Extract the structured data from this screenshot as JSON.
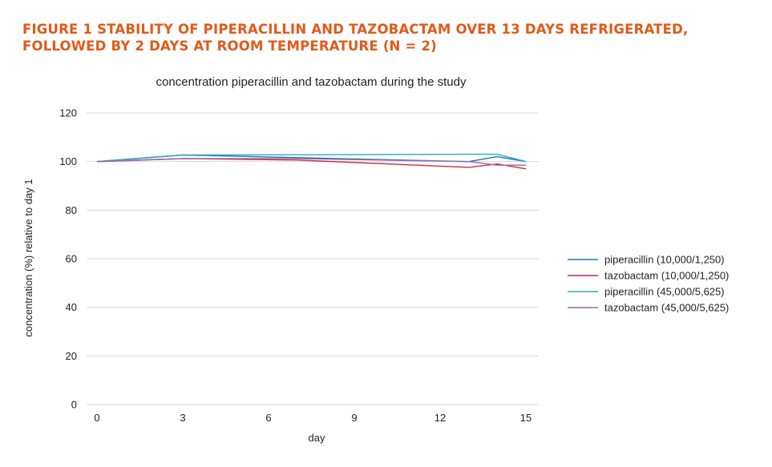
{
  "figure_title": "FIGURE 1 STABILITY OF PIPERACILLIN AND TAZOBACTAM OVER 13 DAYS REFRIGERATED, FOLLOWED BY 2 DAYS AT ROOM TEMPERATURE (N = 2)",
  "chart_data": {
    "type": "line",
    "title": "concentration piperacillin and tazobactam during the study",
    "xlabel": "day",
    "ylabel": "concentration (%) relative to day 1",
    "xlim": [
      0,
      15
    ],
    "ylim": [
      0,
      120
    ],
    "xticks": [
      0,
      3,
      6,
      9,
      12,
      15
    ],
    "yticks": [
      0,
      20,
      40,
      60,
      80,
      100,
      120
    ],
    "grid": true,
    "legend_position": "right",
    "series": [
      {
        "name": "piperacillin (10,000/1,250)",
        "color": "#1F77A8",
        "x": [
          0,
          3,
          7,
          13,
          14,
          15
        ],
        "y": [
          100,
          102.7,
          101.6,
          100,
          102,
          100
        ]
      },
      {
        "name": "tazobactam (10,000/1,250)",
        "color": "#D62745",
        "x": [
          0,
          3,
          7,
          13,
          14,
          15
        ],
        "y": [
          100,
          101.2,
          100.6,
          97.6,
          99,
          97
        ]
      },
      {
        "name": "piperacillin (45,000/5,625)",
        "color": "#2BA8C7",
        "x": [
          0,
          3,
          7,
          13,
          14,
          15
        ],
        "y": [
          100,
          102.7,
          102.8,
          103,
          103,
          100
        ]
      },
      {
        "name": "tazobactam (45,000/5,625)",
        "color": "#9B6BA8",
        "x": [
          0,
          3,
          7,
          13,
          14,
          15
        ],
        "y": [
          100,
          101.2,
          101.2,
          100,
          98.5,
          98.5
        ]
      }
    ]
  }
}
